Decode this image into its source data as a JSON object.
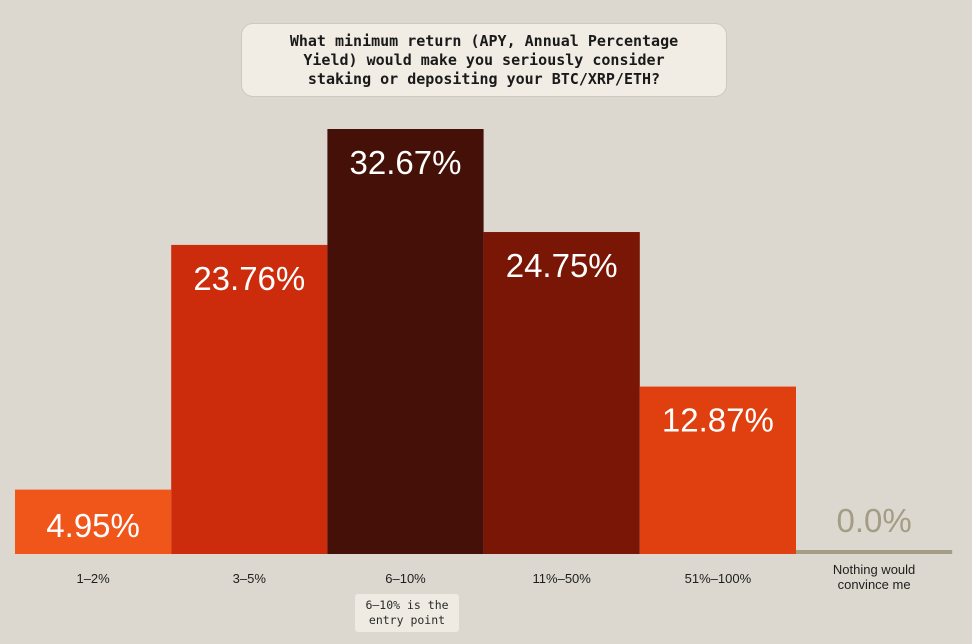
{
  "chart_data": {
    "type": "bar",
    "title": "What minimum return (APY, Annual Percentage\nYield) would make you seriously consider\nstaking or depositing your BTC/XRP/ETH?",
    "categories": [
      "1–2%",
      "3–5%",
      "6–10%",
      "11%–50%",
      "51%–100%",
      "Nothing would\nconvince me"
    ],
    "values": [
      4.95,
      23.76,
      32.67,
      24.75,
      12.87,
      0.0
    ],
    "value_labels": [
      "4.95%",
      "23.76%",
      "32.67%",
      "24.75%",
      "12.87%",
      "0.0%"
    ],
    "colors": [
      "#f0561a",
      "#cc2c0c",
      "#451008",
      "#7a1606",
      "#e0400f",
      "#a39d86"
    ],
    "label_colors": [
      "#ffffff",
      "#ffffff",
      "#ffffff",
      "#ffffff",
      "#ffffff",
      "#a39d86"
    ],
    "xlabel": "",
    "ylabel": "",
    "ylim": [
      0,
      32.67
    ],
    "grid": false,
    "annotation": "6–10% is the\nentry point"
  }
}
